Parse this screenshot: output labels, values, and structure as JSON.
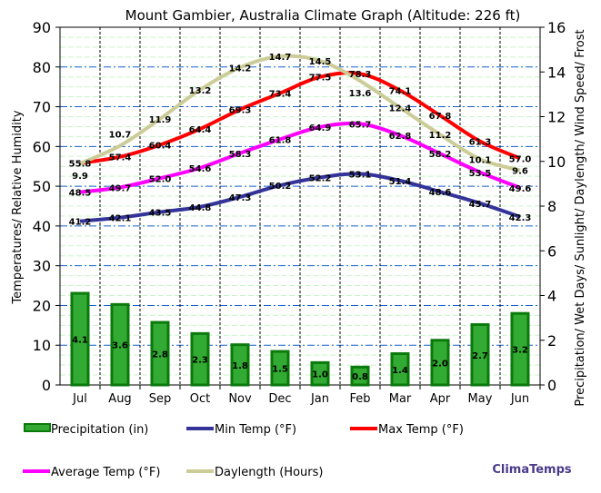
{
  "chart_data": {
    "type": "bar+line",
    "title": "Mount Gambier, Australia Climate Graph (Altitude: 226 ft)",
    "ylabel": "Temperatures/ Relative Humidity",
    "y2label": "Precipitation/ Wet Days/ Sunlight/ Daylength/ Wind Speed/ Frost",
    "ylim": [
      0,
      90
    ],
    "y2lim": [
      0,
      16
    ],
    "yticks": [
      "0",
      "10",
      "20",
      "30",
      "40",
      "50",
      "60",
      "70",
      "80",
      "90"
    ],
    "y2ticks": [
      "0",
      "2",
      "4",
      "6",
      "8",
      "10",
      "12",
      "14",
      "16"
    ],
    "grid": true,
    "legend_placement": "bottom",
    "categories": [
      "Jul",
      "Aug",
      "Sep",
      "Oct",
      "Nov",
      "Dec",
      "Jan",
      "Feb",
      "Mar",
      "Apr",
      "May",
      "Jun"
    ],
    "series": [
      {
        "name": "Precipitation (in)",
        "type": "bar",
        "axis": "right",
        "color": "#2e9e2e",
        "values": [
          4.1,
          3.6,
          2.8,
          2.3,
          1.8,
          1.5,
          1.0,
          0.8,
          1.4,
          2.0,
          2.7,
          3.2
        ]
      },
      {
        "name": "Min Temp (°F)",
        "type": "line",
        "axis": "left",
        "color": "#333399",
        "values": [
          41.2,
          42.1,
          43.5,
          44.8,
          47.3,
          50.2,
          52.2,
          53.1,
          51.4,
          48.6,
          45.7,
          42.3
        ]
      },
      {
        "name": "Max Temp (°F)",
        "type": "line",
        "axis": "left",
        "color": "#ff0000",
        "values": [
          55.8,
          57.4,
          60.4,
          64.4,
          69.3,
          73.4,
          77.5,
          78.3,
          74.1,
          67.8,
          61.3,
          57.0
        ]
      },
      {
        "name": "Average Temp (°F)",
        "type": "line",
        "axis": "left",
        "color": "#ff00ff",
        "values": [
          48.5,
          49.7,
          52.0,
          54.6,
          58.3,
          61.8,
          64.9,
          65.7,
          62.8,
          58.2,
          53.5,
          49.6
        ]
      },
      {
        "name": "Daylength (Hours)",
        "type": "line",
        "axis": "right",
        "color": "#cccc99",
        "values": [
          9.9,
          10.7,
          11.9,
          13.2,
          14.2,
          14.7,
          14.5,
          13.6,
          12.4,
          11.2,
          10.1,
          9.6
        ]
      }
    ]
  },
  "brand": "ClimaTemps"
}
